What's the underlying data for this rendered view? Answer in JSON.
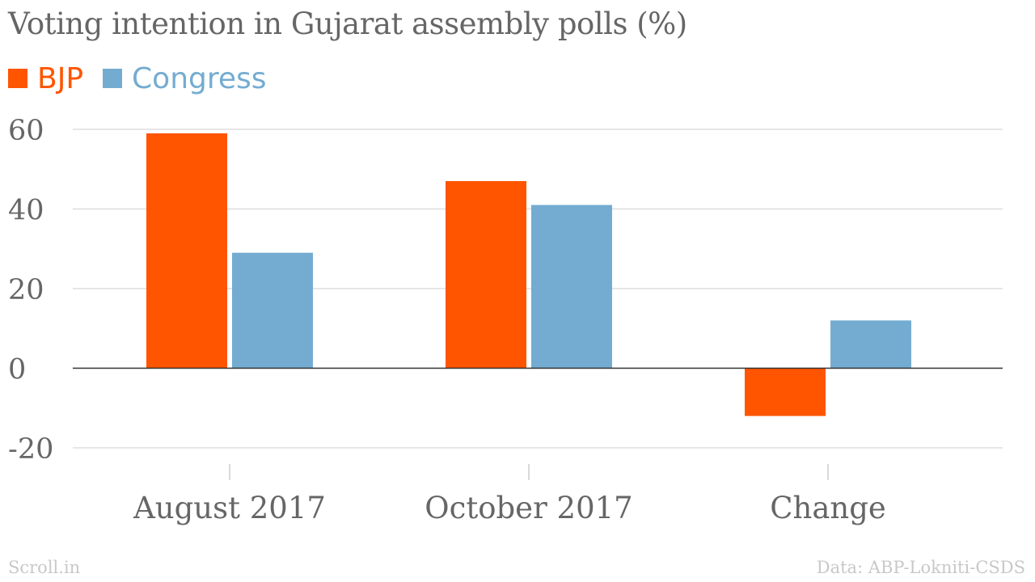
{
  "chart_data": {
    "type": "bar",
    "title": "Voting intention in Gujarat assembly polls (%)",
    "categories": [
      "August 2017",
      "October 2017",
      "Change"
    ],
    "series": [
      {
        "name": "BJP",
        "values": [
          59,
          47,
          -12
        ],
        "color": "#ff5500"
      },
      {
        "name": "Congress",
        "values": [
          29,
          41,
          12
        ],
        "color": "#74acd1"
      }
    ],
    "ylim": [
      -20,
      60
    ],
    "yticks": [
      60,
      40,
      20,
      0,
      -20
    ],
    "grid": true,
    "legend_position": "top-left"
  },
  "footer": {
    "source_left": "Scroll.in",
    "source_right": "Data: ABP-Lokniti-CSDS"
  },
  "colors": {
    "text": "#666666",
    "grid": "#dddddd",
    "zero_line": "#333333",
    "footer": "#c8c8c8"
  }
}
